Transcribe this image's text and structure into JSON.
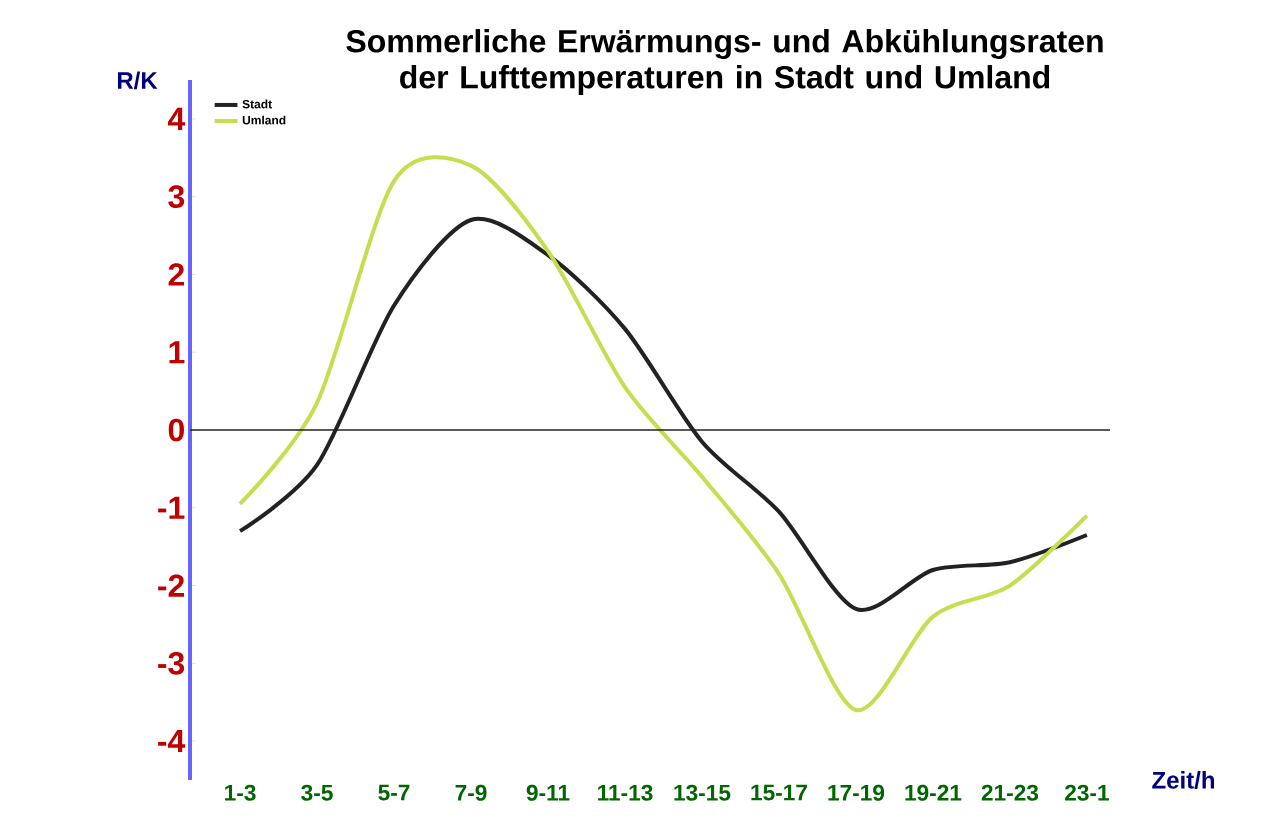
{
  "chart_data": {
    "type": "line",
    "title": "Sommerliche Erwärmungs- und Abkühlungsraten der Lufttemperaturen in Stadt und Umland",
    "xlabel": "Zeit/h",
    "ylabel": "R/K",
    "categories": [
      "1-3",
      "3-5",
      "5-7",
      "7-9",
      "9-11",
      "11-13",
      "13-15",
      "15-17",
      "17-19",
      "19-21",
      "21-23",
      "23-1"
    ],
    "ylim": [
      -4.5,
      4.5
    ],
    "yticks": [
      -4,
      -3,
      -2,
      -1,
      0,
      1,
      2,
      3,
      4
    ],
    "ref_lines": [
      {
        "axis": "y",
        "value": 0,
        "color": "#222222"
      }
    ],
    "legend": "top left",
    "grid": false,
    "marker": "none",
    "line_style": "solid",
    "series": [
      {
        "name": "Stadt",
        "color": "#222222",
        "values": [
          -1.3,
          -0.45,
          1.6,
          2.7,
          2.25,
          1.3,
          -0.15,
          -1.05,
          -2.3,
          -1.8,
          -1.7,
          -1.35
        ]
      },
      {
        "name": "Umland",
        "color": "#c8dc50",
        "values": [
          -0.95,
          0.35,
          3.2,
          3.4,
          2.3,
          0.55,
          -0.6,
          -1.85,
          -3.6,
          -2.4,
          -2.0,
          -1.1
        ]
      }
    ]
  }
}
